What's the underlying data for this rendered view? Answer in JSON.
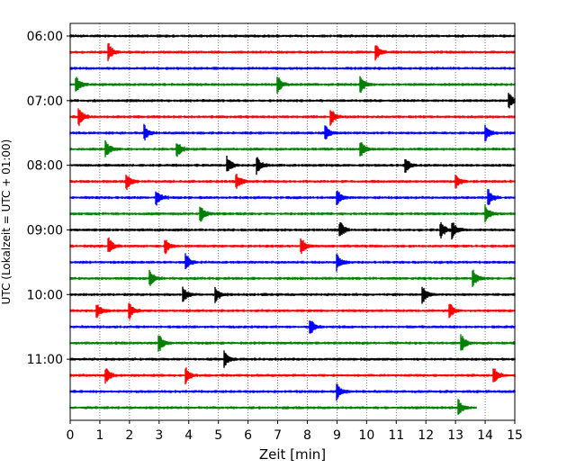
{
  "chart_data": {
    "type": "line",
    "title": "",
    "xlabel": "Zeit  [min]",
    "ylabel": "UTC (Lokalzeit = UTC + 01:00)",
    "xlim": [
      0,
      15
    ],
    "x_ticks": [
      "0",
      "1",
      "2",
      "3",
      "4",
      "5",
      "6",
      "7",
      "8",
      "9",
      "10",
      "11",
      "12",
      "13",
      "14",
      "15"
    ],
    "y_ticks": [
      "06:00",
      "07:00",
      "08:00",
      "09:00",
      "10:00",
      "11:00"
    ],
    "grid": "vertical dotted",
    "series_colors": [
      "#000000",
      "#ff0000",
      "#0000ff",
      "#008000"
    ],
    "traces": [
      {
        "start": "06:00",
        "color": "#000000",
        "end_min": 15,
        "events": []
      },
      {
        "start": "06:15",
        "color": "#ff0000",
        "end_min": 15,
        "events": [
          1.3,
          10.3
        ]
      },
      {
        "start": "06:30",
        "color": "#0000ff",
        "end_min": 15,
        "events": []
      },
      {
        "start": "06:45",
        "color": "#008000",
        "end_min": 15,
        "events": [
          0.2,
          7.0,
          9.8
        ]
      },
      {
        "start": "07:00",
        "color": "#000000",
        "end_min": 15,
        "events": [
          14.8
        ]
      },
      {
        "start": "07:15",
        "color": "#ff0000",
        "end_min": 15,
        "events": [
          0.3,
          8.8
        ]
      },
      {
        "start": "07:30",
        "color": "#0000ff",
        "end_min": 15,
        "events": [
          2.5,
          8.6,
          14.0
        ]
      },
      {
        "start": "07:45",
        "color": "#008000",
        "end_min": 15,
        "events": [
          1.2,
          3.6,
          9.8
        ]
      },
      {
        "start": "08:00",
        "color": "#000000",
        "end_min": 15,
        "events": [
          5.3,
          6.3,
          11.3
        ]
      },
      {
        "start": "08:15",
        "color": "#ff0000",
        "end_min": 15,
        "events": [
          1.9,
          5.6,
          13.0
        ]
      },
      {
        "start": "08:30",
        "color": "#0000ff",
        "end_min": 15,
        "events": [
          2.9,
          9.0,
          14.1
        ]
      },
      {
        "start": "08:45",
        "color": "#008000",
        "end_min": 15,
        "events": [
          4.4,
          14.0
        ]
      },
      {
        "start": "09:00",
        "color": "#000000",
        "end_min": 15,
        "events": [
          9.1,
          12.5,
          12.9
        ]
      },
      {
        "start": "09:15",
        "color": "#ff0000",
        "end_min": 15,
        "events": [
          1.3,
          3.2,
          7.8
        ]
      },
      {
        "start": "09:30",
        "color": "#0000ff",
        "end_min": 15,
        "events": [
          3.9,
          9.0
        ]
      },
      {
        "start": "09:45",
        "color": "#008000",
        "end_min": 15,
        "events": [
          2.7,
          13.6
        ]
      },
      {
        "start": "10:00",
        "color": "#000000",
        "end_min": 15,
        "events": [
          3.8,
          4.9,
          11.9
        ]
      },
      {
        "start": "10:15",
        "color": "#ff0000",
        "end_min": 15,
        "events": [
          0.9,
          2.0,
          12.8
        ]
      },
      {
        "start": "10:30",
        "color": "#0000ff",
        "end_min": 15,
        "events": [
          8.1
        ]
      },
      {
        "start": "10:45",
        "color": "#008000",
        "end_min": 15,
        "events": [
          3.0,
          13.2
        ]
      },
      {
        "start": "11:00",
        "color": "#000000",
        "end_min": 15,
        "events": [
          5.2
        ]
      },
      {
        "start": "11:15",
        "color": "#ff0000",
        "end_min": 15,
        "events": [
          1.2,
          3.9,
          14.3
        ]
      },
      {
        "start": "11:30",
        "color": "#0000ff",
        "end_min": 15,
        "events": [
          9.0
        ]
      },
      {
        "start": "11:45",
        "color": "#008000",
        "end_min": 13.7,
        "events": [
          13.1
        ]
      }
    ]
  }
}
